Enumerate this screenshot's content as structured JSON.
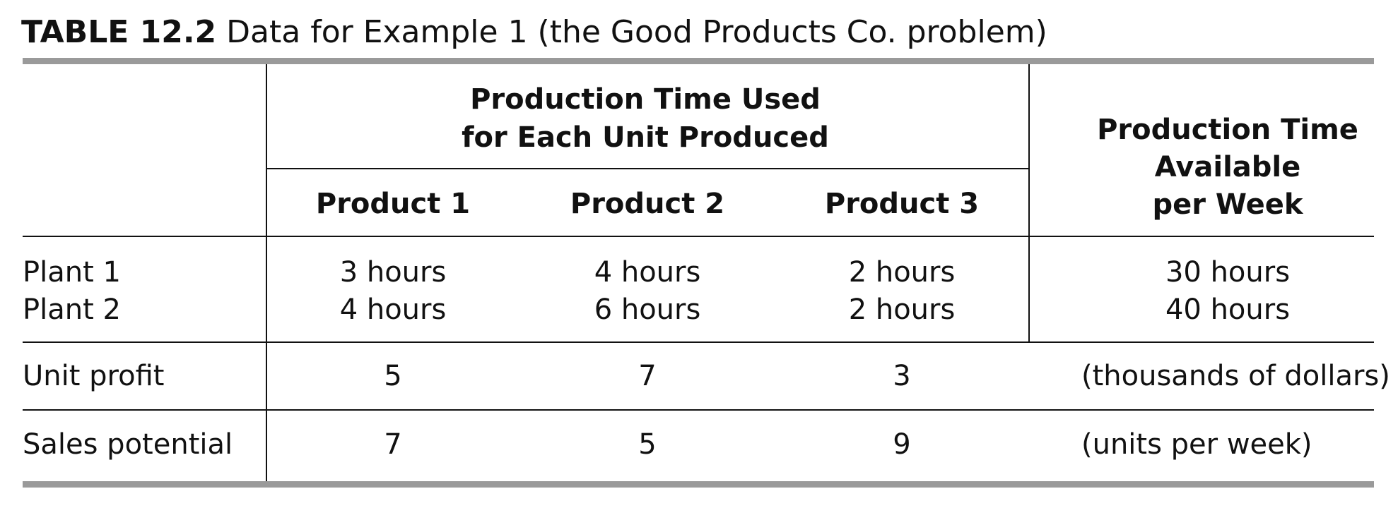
{
  "caption": {
    "number": "TABLE 12.2",
    "title": "Data for Example 1 (the Good Products Co. problem)"
  },
  "table": {
    "group_header_line1": "Production Time Used",
    "group_header_line2": "for Each Unit Produced",
    "columns": [
      "Product 1",
      "Product 2",
      "Product 3"
    ],
    "available_header_line1": "Production Time",
    "available_header_line2": "Available",
    "available_header_line3": "per Week",
    "rows": [
      {
        "label": "Plant 1",
        "values": [
          "3 hours",
          "4 hours",
          "2 hours"
        ],
        "available": "30 hours"
      },
      {
        "label": "Plant 2",
        "values": [
          "4 hours",
          "6 hours",
          "2 hours"
        ],
        "available": "40 hours"
      },
      {
        "label": "Unit profit",
        "values": [
          "5",
          "7",
          "3"
        ],
        "available": "(thousands of dollars)"
      },
      {
        "label": "Sales potential",
        "values": [
          "7",
          "5",
          "9"
        ],
        "available": "(units per week)"
      }
    ]
  }
}
